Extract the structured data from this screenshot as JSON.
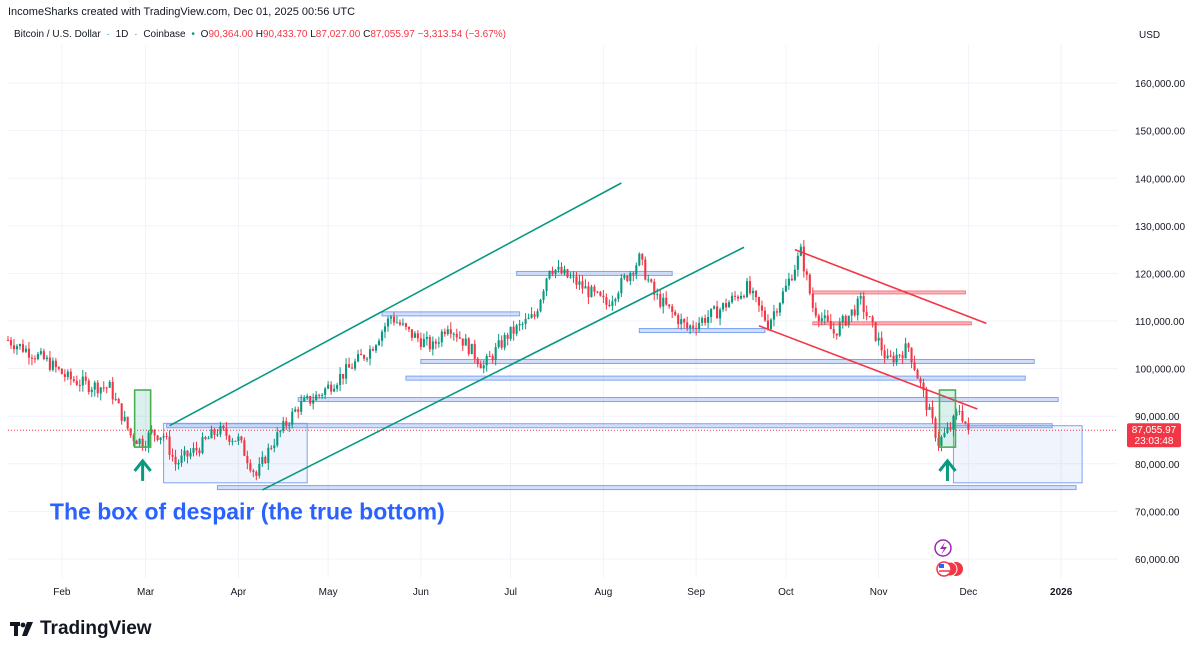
{
  "header": {
    "attribution": "IncomeSharks created with TradingView.com, Dec 01, 2025 00:56 UTC"
  },
  "symbol": {
    "name": "Bitcoin / U.S. Dollar",
    "timeframe": "1D",
    "exchange": "Coinbase",
    "open_label": "O",
    "open": "90,364.00",
    "high_label": "H",
    "high": "90,433.70",
    "low_label": "L",
    "low": "87,027.00",
    "close_label": "C",
    "close": "87,055.97",
    "change": "−3,313.54 (−3.67%)"
  },
  "currency": "USD",
  "branding": {
    "name": "TradingView"
  },
  "colors": {
    "up": "#089981",
    "down": "#f23645",
    "channel": "#089981",
    "downtrend": "#f23645",
    "zone": "#7ea2f2",
    "annotation": "#2962ff",
    "grid": "#f0f3fa"
  },
  "chart_data": {
    "type": "candlestick",
    "title": "Bitcoin / U.S. Dollar · 1D · Coinbase",
    "ylim": [
      56000,
      168000
    ],
    "y_ticks": [
      60000,
      70000,
      80000,
      90000,
      100000,
      110000,
      120000,
      130000,
      140000,
      150000,
      160000
    ],
    "y_tick_labels": [
      "60,000.00",
      "70,000.00",
      "80,000.00",
      "90,000.00",
      "100,000.00",
      "110,000.00",
      "120,000.00",
      "130,000.00",
      "140,000.00",
      "150,000.00",
      "160,000.00"
    ],
    "x_range": [
      "2025-01-14",
      "2026-01-20"
    ],
    "x_ticks": [
      {
        "date": "2025-02-01",
        "label": "Feb"
      },
      {
        "date": "2025-03-01",
        "label": "Mar"
      },
      {
        "date": "2025-04-01",
        "label": "Apr"
      },
      {
        "date": "2025-05-01",
        "label": "May"
      },
      {
        "date": "2025-06-01",
        "label": "Jun"
      },
      {
        "date": "2025-07-01",
        "label": "Jul"
      },
      {
        "date": "2025-08-01",
        "label": "Aug"
      },
      {
        "date": "2025-09-01",
        "label": "Sep"
      },
      {
        "date": "2025-10-01",
        "label": "Oct"
      },
      {
        "date": "2025-11-01",
        "label": "Nov"
      },
      {
        "date": "2025-12-01",
        "label": "Dec"
      },
      {
        "date": "2026-01-01",
        "label": "2026"
      }
    ],
    "grid": true,
    "last_price": {
      "value": 87055.97,
      "label": "87,055.97",
      "countdown": "23:03:48"
    },
    "price_path": [
      [
        "2025-01-14",
        106000
      ],
      [
        "2025-01-20",
        104000
      ],
      [
        "2025-01-27",
        101500
      ],
      [
        "2025-02-03",
        98000
      ],
      [
        "2025-02-10",
        96500
      ],
      [
        "2025-02-17",
        96000
      ],
      [
        "2025-02-24",
        86000
      ],
      [
        "2025-02-28",
        84500
      ],
      [
        "2025-03-03",
        86500
      ],
      [
        "2025-03-07",
        86000
      ],
      [
        "2025-03-11",
        80000
      ],
      [
        "2025-03-18",
        83000
      ],
      [
        "2025-03-25",
        87000
      ],
      [
        "2025-04-01",
        85000
      ],
      [
        "2025-04-07",
        77500
      ],
      [
        "2025-04-12",
        84000
      ],
      [
        "2025-04-21",
        92000
      ],
      [
        "2025-04-28",
        94500
      ],
      [
        "2025-05-08",
        100000
      ],
      [
        "2025-05-15",
        104000
      ],
      [
        "2025-05-22",
        111000
      ],
      [
        "2025-05-28",
        107500
      ],
      [
        "2025-06-05",
        104500
      ],
      [
        "2025-06-10",
        109500
      ],
      [
        "2025-06-17",
        104500
      ],
      [
        "2025-06-22",
        100500
      ],
      [
        "2025-06-30",
        107000
      ],
      [
        "2025-07-09",
        111000
      ],
      [
        "2025-07-14",
        121500
      ],
      [
        "2025-07-22",
        118500
      ],
      [
        "2025-08-02",
        113500
      ],
      [
        "2025-08-13",
        123000
      ],
      [
        "2025-08-18",
        115500
      ],
      [
        "2025-08-29",
        108500
      ],
      [
        "2025-09-08",
        112000
      ],
      [
        "2025-09-18",
        117000
      ],
      [
        "2025-09-25",
        109500
      ],
      [
        "2025-10-01",
        117000
      ],
      [
        "2025-10-06",
        124500
      ],
      [
        "2025-10-10",
        113000
      ],
      [
        "2025-10-17",
        107500
      ],
      [
        "2025-10-26",
        114000
      ],
      [
        "2025-11-04",
        101500
      ],
      [
        "2025-11-11",
        104500
      ],
      [
        "2025-11-17",
        92500
      ],
      [
        "2025-11-21",
        84500
      ],
      [
        "2025-11-25",
        87500
      ],
      [
        "2025-11-28",
        91500
      ],
      [
        "2025-12-01",
        87056
      ]
    ],
    "drawings": {
      "channel_lines": [
        {
          "from": [
            "2025-03-09",
            88000
          ],
          "to": [
            "2025-08-07",
            139000
          ]
        },
        {
          "from": [
            "2025-04-09",
            74500
          ],
          "to": [
            "2025-09-17",
            125500
          ]
        }
      ],
      "downtrend_lines": [
        {
          "from": [
            "2025-10-04",
            125000
          ],
          "to": [
            "2025-12-07",
            109500
          ]
        },
        {
          "from": [
            "2025-09-22",
            109000
          ],
          "to": [
            "2025-12-04",
            91500
          ]
        }
      ],
      "resistance_lines": [
        {
          "from": [
            "2025-10-10",
            116000
          ],
          "to": [
            "2025-11-30",
            116000
          ]
        },
        {
          "from": [
            "2025-10-10",
            109500
          ],
          "to": [
            "2025-12-02",
            109500
          ]
        }
      ],
      "zones": [
        {
          "from": [
            "2025-07-03",
            120000
          ],
          "to": [
            "2025-08-24",
            120000
          ]
        },
        {
          "from": [
            "2025-05-19",
            111500
          ],
          "to": [
            "2025-07-04",
            111500
          ]
        },
        {
          "from": [
            "2025-08-13",
            108000
          ],
          "to": [
            "2025-09-24",
            108000
          ]
        },
        {
          "from": [
            "2025-06-01",
            101500
          ],
          "to": [
            "2025-12-23",
            101500
          ]
        },
        {
          "from": [
            "2025-05-27",
            98000
          ],
          "to": [
            "2025-12-20",
            98000
          ]
        },
        {
          "from": [
            "2025-04-21",
            93500
          ],
          "to": [
            "2025-12-31",
            93500
          ]
        },
        {
          "from": [
            "2025-03-08",
            88000
          ],
          "to": [
            "2025-12-29",
            88000
          ]
        },
        {
          "from": [
            "2025-03-25",
            75000
          ],
          "to": [
            "2026-01-06",
            75000
          ]
        }
      ],
      "boxes": [
        {
          "from": [
            "2025-03-07",
            88500
          ],
          "to": [
            "2025-04-24",
            76000
          ]
        },
        {
          "from": [
            "2025-11-26",
            88000
          ],
          "to": [
            "2026-01-08",
            76000
          ]
        }
      ],
      "markers": [
        {
          "date": "2025-02-28",
          "low": 83500,
          "high": 95500
        },
        {
          "date": "2025-11-24",
          "low": 83500,
          "high": 95500
        }
      ],
      "arrows": [
        {
          "date": "2025-02-28",
          "price": 78500
        },
        {
          "date": "2025-11-24",
          "price": 78500
        }
      ],
      "annotation": {
        "text": "The box of despair (the true bottom)",
        "date": "2025-04-04",
        "price": 70000
      }
    }
  }
}
